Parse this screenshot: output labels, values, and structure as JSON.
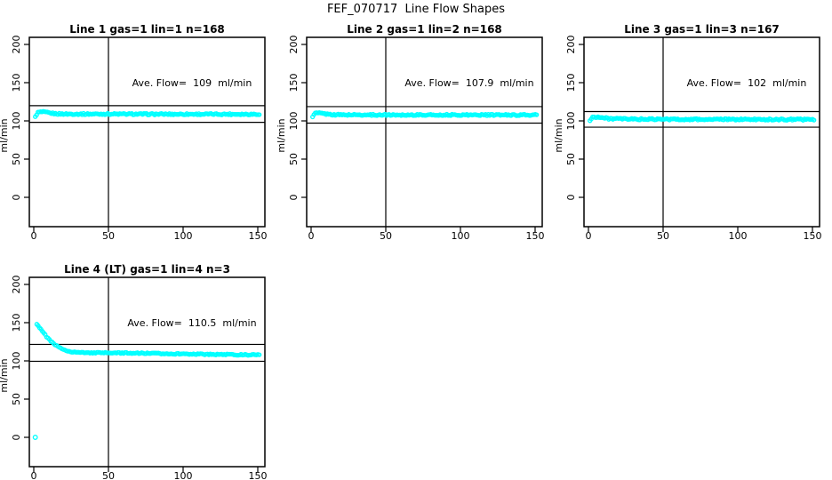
{
  "page": {
    "title": "FEF_070717  Line Flow Shapes"
  },
  "colors": {
    "series": "#00FFFF",
    "axis": "#000000",
    "background": "#FFFFFF"
  },
  "chart_data": [
    {
      "type": "scatter",
      "title": "Line 1 gas=1 lin=1 n=168",
      "annotation": "Ave. Flow=  109  ml/min",
      "ave_flow": 109,
      "n": 168,
      "ylabel": "ml/min",
      "x_ticks": [
        0,
        50,
        100,
        150
      ],
      "y_ticks": [
        0,
        50,
        100,
        150,
        200
      ],
      "xlim": [
        -3,
        155
      ],
      "ylim": [
        -38,
        209
      ],
      "vline_x": 50,
      "hlines": [
        119.9,
        98.1
      ],
      "points": [
        [
          1,
          105
        ],
        [
          2.5,
          110.8
        ],
        [
          4,
          111.6
        ],
        [
          6,
          111.6
        ],
        [
          8,
          111.2
        ],
        [
          11,
          110.2
        ],
        [
          14,
          109.5
        ],
        [
          18,
          109.1
        ],
        [
          25,
          109
        ],
        [
          50,
          109
        ],
        [
          80,
          108.8
        ],
        [
          110,
          108.8
        ],
        [
          151,
          108.8
        ]
      ],
      "outliers": [],
      "marker_count": 168,
      "noise": 0.9,
      "marker": "circle-open"
    },
    {
      "type": "scatter",
      "title": "Line 2 gas=1 lin=2 n=168",
      "annotation": "Ave. Flow=  107.9  ml/min",
      "ave_flow": 107.9,
      "n": 168,
      "ylabel": "ml/min",
      "x_ticks": [
        0,
        50,
        100,
        150
      ],
      "y_ticks": [
        0,
        50,
        100,
        150,
        200
      ],
      "xlim": [
        -3,
        155
      ],
      "ylim": [
        -38,
        209
      ],
      "vline_x": 50,
      "hlines": [
        118.7,
        97.1
      ],
      "points": [
        [
          1,
          106
        ],
        [
          2.5,
          109.8
        ],
        [
          4,
          110.4
        ],
        [
          6,
          110.2
        ],
        [
          9,
          109.2
        ],
        [
          13,
          108.4
        ],
        [
          18,
          108
        ],
        [
          30,
          107.9
        ],
        [
          60,
          107.8
        ],
        [
          100,
          107.8
        ],
        [
          151,
          107.7
        ]
      ],
      "outliers": [],
      "marker_count": 168,
      "noise": 0.9,
      "marker": "circle-open"
    },
    {
      "type": "scatter",
      "title": "Line 3 gas=1 lin=3 n=167",
      "annotation": "Ave. Flow=  102  ml/min",
      "ave_flow": 102,
      "n": 167,
      "ylabel": "ml/min",
      "x_ticks": [
        0,
        50,
        100,
        150
      ],
      "y_ticks": [
        0,
        50,
        100,
        150,
        200
      ],
      "xlim": [
        -3,
        155
      ],
      "ylim": [
        -38,
        209
      ],
      "vline_x": 50,
      "hlines": [
        112.2,
        91.8
      ],
      "points": [
        [
          1,
          100
        ],
        [
          2.5,
          104.6
        ],
        [
          4,
          105.4
        ],
        [
          6,
          105.2
        ],
        [
          9,
          104.2
        ],
        [
          13,
          103.2
        ],
        [
          20,
          102.6
        ],
        [
          35,
          102.2
        ],
        [
          70,
          102
        ],
        [
          110,
          101.9
        ],
        [
          151,
          101.8
        ]
      ],
      "outliers": [],
      "marker_count": 167,
      "noise": 1.0,
      "marker": "circle-open"
    },
    {
      "type": "scatter",
      "title": "Line 4 (LT) gas=1 lin=4 n=3",
      "annotation": "Ave. Flow=  110.5  ml/min",
      "ave_flow": 110.5,
      "n": 3,
      "ylabel": "ml/min",
      "x_ticks": [
        0,
        50,
        100,
        150
      ],
      "y_ticks": [
        0,
        50,
        100,
        150,
        200
      ],
      "xlim": [
        -3,
        155
      ],
      "ylim": [
        -38,
        209
      ],
      "vline_x": 50,
      "hlines": [
        121.6,
        99.5
      ],
      "points": [
        [
          2,
          148.5
        ],
        [
          3,
          146
        ],
        [
          5,
          141
        ],
        [
          7,
          135.5
        ],
        [
          9,
          130.5
        ],
        [
          12,
          124.5
        ],
        [
          15,
          120
        ],
        [
          18,
          116.5
        ],
        [
          22,
          113.5
        ],
        [
          26,
          111.8
        ],
        [
          30,
          111
        ],
        [
          38,
          110.6
        ],
        [
          50,
          110.5
        ],
        [
          65,
          110.3
        ],
        [
          85,
          109.6
        ],
        [
          105,
          109
        ],
        [
          125,
          108.4
        ],
        [
          151,
          107.8
        ]
      ],
      "outliers": [
        [
          1,
          0
        ]
      ],
      "marker_count": 160,
      "noise": 0.7,
      "marker": "circle-open"
    }
  ]
}
